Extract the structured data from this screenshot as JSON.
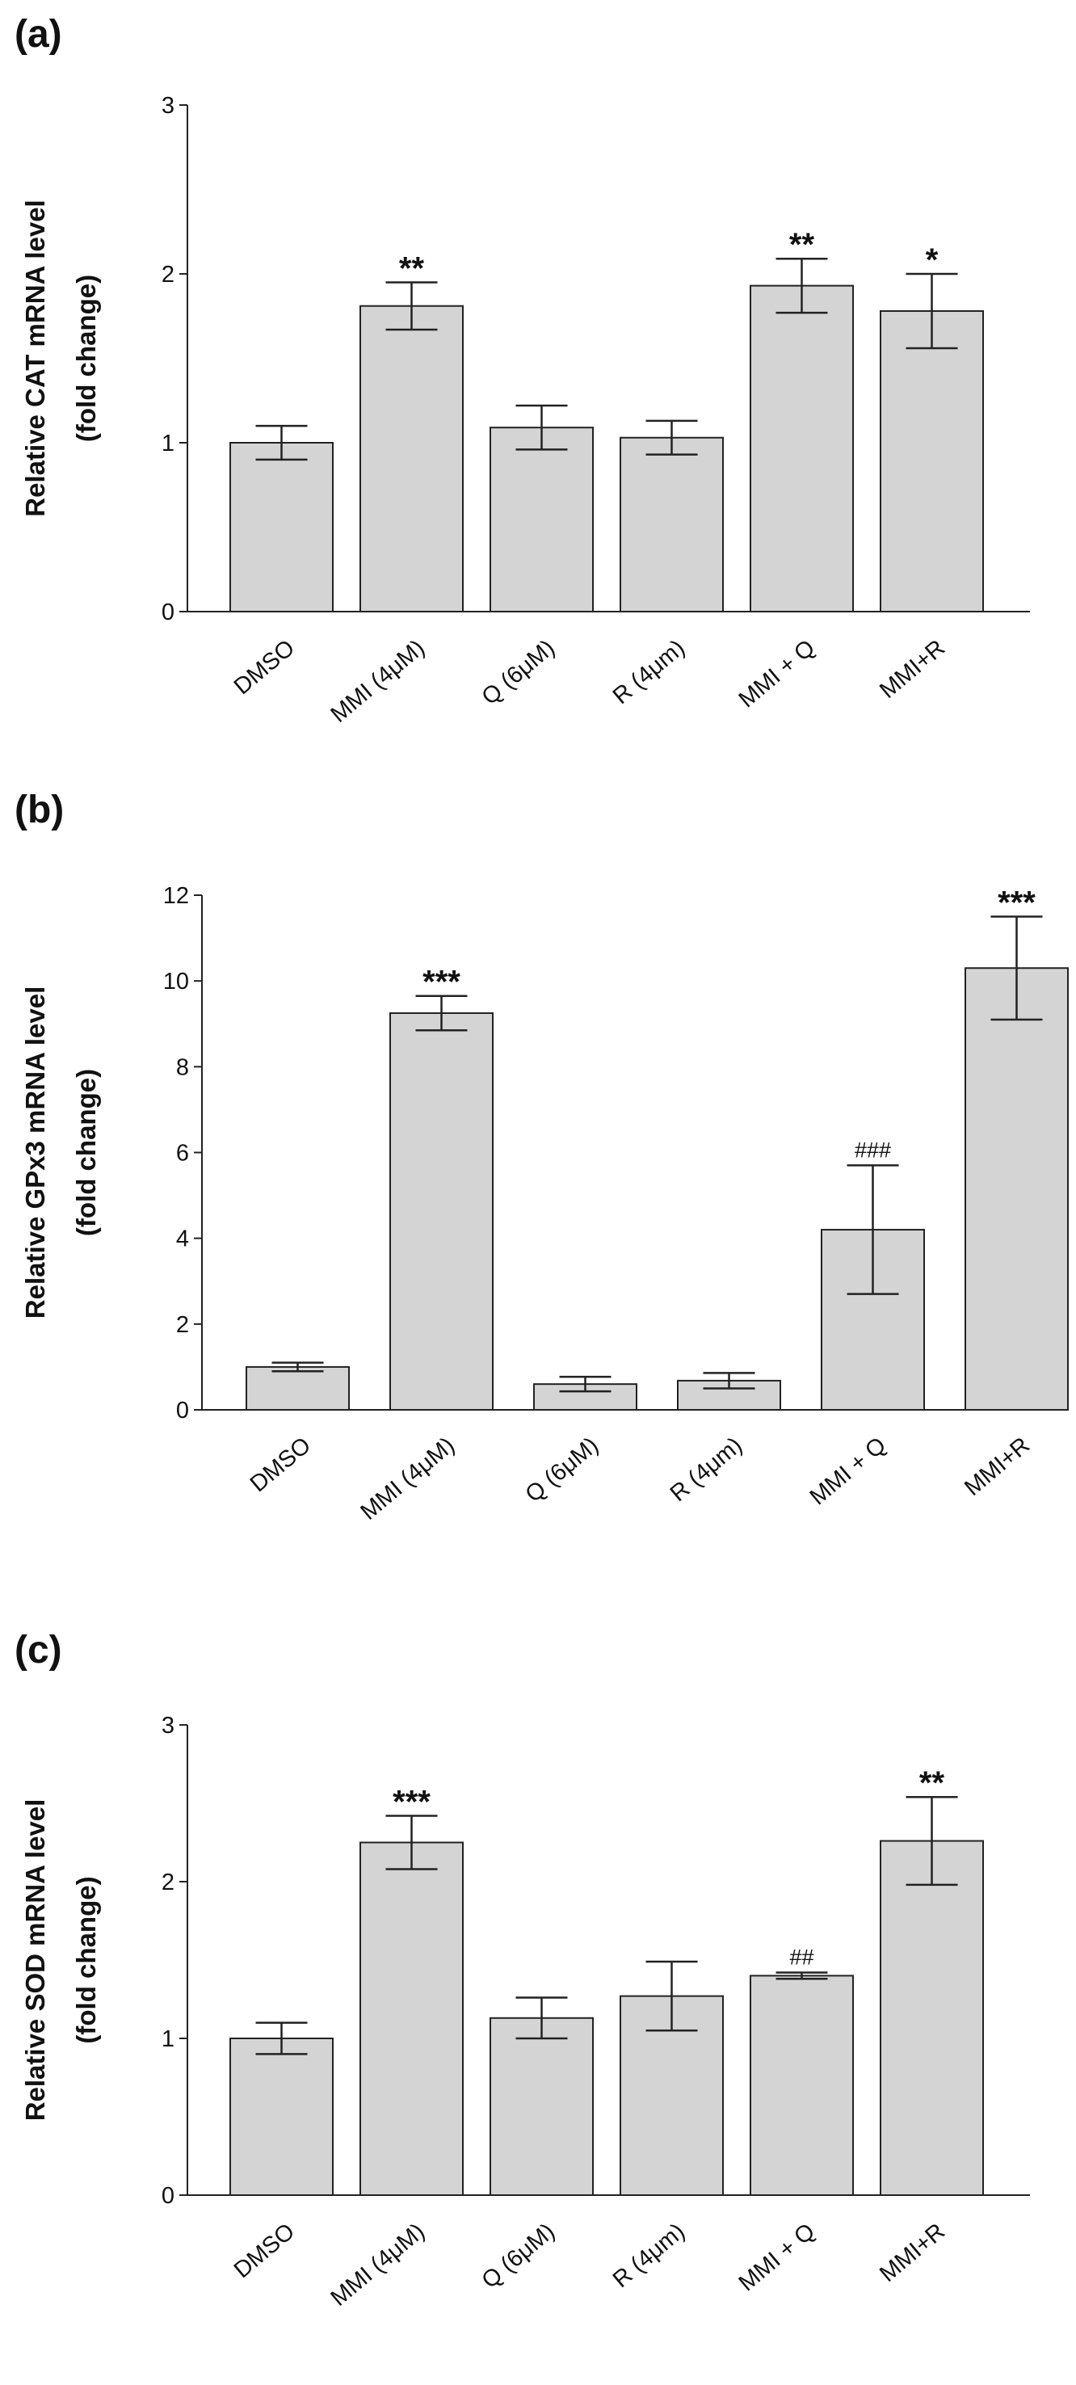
{
  "figure": {
    "charts_count": 3
  },
  "chart_data": [
    {
      "type": "bar",
      "panel": "(a)",
      "title": "",
      "ylabel_line1": "Relative CAT mRNA level",
      "ylabel_line2": "(fold change)",
      "xlabel": "",
      "categories": [
        "DMSO",
        "MMI (4μM)",
        "Q (6μM)",
        "R (4μm)",
        "MMI + Q",
        "MMI+R"
      ],
      "values": [
        1.0,
        1.81,
        1.09,
        1.03,
        1.93,
        1.78
      ],
      "errors": [
        0.1,
        0.14,
        0.13,
        0.1,
        0.16,
        0.22
      ],
      "annotations": [
        "",
        "**",
        "",
        "",
        "**",
        "*"
      ],
      "ylim": [
        0,
        3
      ],
      "yticks": [
        "0",
        "1",
        "2",
        "3"
      ],
      "bar_color": "#d4d4d4"
    },
    {
      "type": "bar",
      "panel": "(b)",
      "title": "",
      "ylabel_line1": "Relative GPx3 mRNA level",
      "ylabel_line2": "(fold change)",
      "xlabel": "",
      "categories": [
        "DMSO",
        "MMI (4μM)",
        "Q (6μM)",
        "R (4μm)",
        "MMI + Q",
        "MMI+R"
      ],
      "values": [
        1.0,
        9.25,
        0.6,
        0.68,
        4.2,
        10.3
      ],
      "errors": [
        0.1,
        0.4,
        0.17,
        0.18,
        1.5,
        1.2
      ],
      "annotations": [
        "",
        "***",
        "",
        "",
        "###",
        "***"
      ],
      "ylim": [
        0,
        12
      ],
      "yticks": [
        "0",
        "2",
        "4",
        "6",
        "8",
        "10",
        "12"
      ],
      "bar_color": "#d4d4d4"
    },
    {
      "type": "bar",
      "panel": "(c)",
      "title": "",
      "ylabel_line1": "Relative SOD mRNA level",
      "ylabel_line2": "(fold change)",
      "xlabel": "",
      "categories": [
        "DMSO",
        "MMI (4μM)",
        "Q (6μM)",
        "R (4μm)",
        "MMI + Q",
        "MMI+R"
      ],
      "values": [
        1.0,
        2.25,
        1.13,
        1.27,
        1.4,
        2.26
      ],
      "errors": [
        0.1,
        0.17,
        0.13,
        0.22,
        0.02,
        0.28
      ],
      "annotations": [
        "",
        "***",
        "",
        "",
        "##",
        "**"
      ],
      "ylim": [
        0,
        3
      ],
      "yticks": [
        "0",
        "1",
        "2",
        "3"
      ],
      "bar_color": "#d4d4d4"
    }
  ]
}
